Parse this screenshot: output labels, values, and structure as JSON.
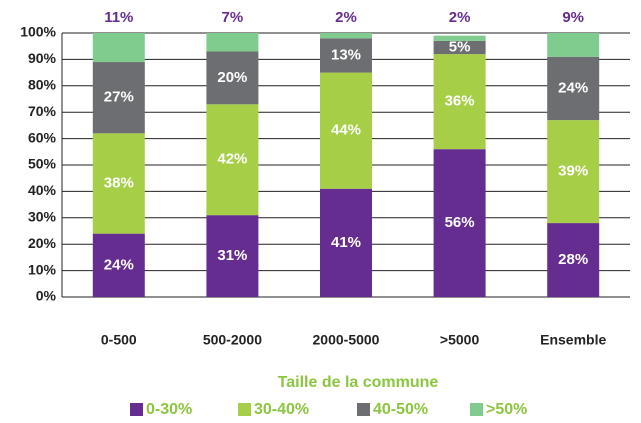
{
  "chart_data": {
    "type": "stacked_bar",
    "xlabel": "Taille de la commune",
    "categories": [
      "0-500",
      "500-2000",
      "2000-5000",
      ">5000",
      "Ensemble"
    ],
    "series": [
      {
        "name": "0-30%",
        "color": "#662d91",
        "values": [
          24,
          31,
          41,
          56,
          28
        ],
        "value_labels": [
          "24%",
          "31%",
          "41%",
          "56%",
          "28%"
        ]
      },
      {
        "name": "30-40%",
        "color": "#a6ce47",
        "values": [
          38,
          42,
          44,
          36,
          39
        ],
        "value_labels": [
          "38%",
          "42%",
          "44%",
          "36%",
          "39%"
        ]
      },
      {
        "name": "40-50%",
        "color": "#6d6e71",
        "values": [
          27,
          20,
          13,
          5,
          24
        ],
        "value_labels": [
          "27%",
          "20%",
          "13%",
          "5%",
          "24%"
        ]
      },
      {
        "name": ">50%",
        "color": "#80cc8e",
        "values": [
          11,
          7,
          2,
          2,
          9
        ],
        "value_labels": [
          "11%",
          "7%",
          "2%",
          "2%",
          "9%"
        ]
      }
    ],
    "ylim": [
      0,
      100
    ],
    "yticks": [
      {
        "value": 0,
        "label": "0%"
      },
      {
        "value": 10,
        "label": "10%"
      },
      {
        "value": 20,
        "label": "20%"
      },
      {
        "value": 30,
        "label": "30%"
      },
      {
        "value": 40,
        "label": "40%"
      },
      {
        "value": 50,
        "label": "50%"
      },
      {
        "value": 60,
        "label": "60%"
      },
      {
        "value": 70,
        "label": "70%"
      },
      {
        "value": 80,
        "label": "80%"
      },
      {
        "value": 90,
        "label": "90%"
      },
      {
        "value": 100,
        "label": "100%"
      }
    ],
    "grid": true
  }
}
